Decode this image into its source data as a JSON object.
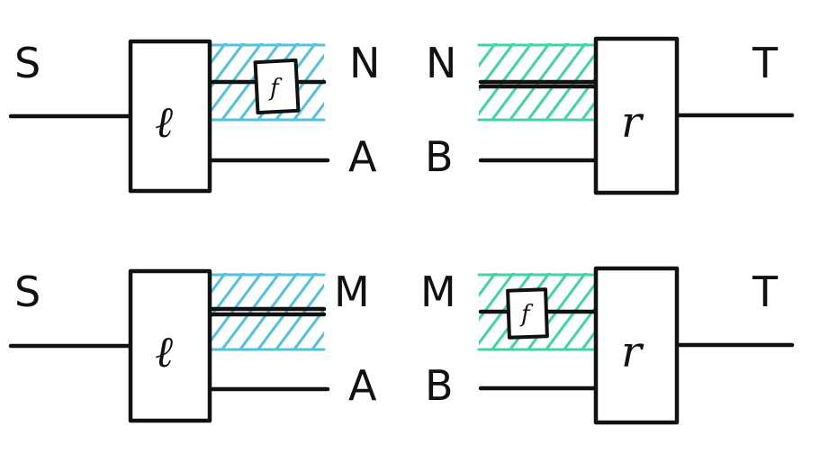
{
  "colors": {
    "blue_hatch": "#4fc3e0",
    "green_hatch": "#3fd6a6",
    "ink": "#111111"
  },
  "top": {
    "left_input": "S",
    "left_box": "ℓ",
    "left_top_wire": "N",
    "left_bottom_wire": "A",
    "morphism": "f",
    "right_top_wire": "N",
    "right_bottom_wire": "B",
    "right_box": "r",
    "right_output": "T"
  },
  "bottom": {
    "left_input": "S",
    "left_box": "ℓ",
    "left_top_wire": "M",
    "left_bottom_wire": "A",
    "right_top_wire": "M",
    "morphism": "f",
    "right_bottom_wire": "B",
    "right_box": "r",
    "right_output": "T"
  }
}
